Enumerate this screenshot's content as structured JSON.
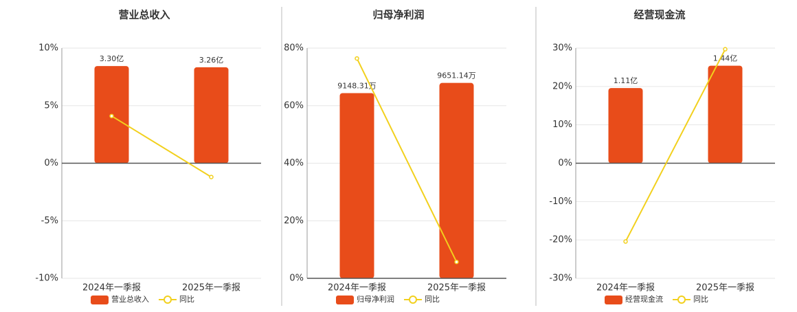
{
  "chart_data": [
    {
      "type": "bar",
      "title": "营业总收入",
      "categories": [
        "2024年一季报",
        "2025年一季报"
      ],
      "series": [
        {
          "name": "营业总收入",
          "type": "bar",
          "color": "#e84c1a",
          "axis": "y2",
          "values": [
            3.3,
            3.26
          ],
          "value_labels": [
            "3.30亿",
            "3.26亿"
          ]
        },
        {
          "name": "同比",
          "type": "line",
          "color": "#f2d01d",
          "values": [
            4.1,
            -1.2
          ]
        }
      ],
      "ylim": [
        -10,
        10
      ],
      "yticks": [
        {
          "value": -10,
          "label": "-10%"
        },
        {
          "value": -5,
          "label": "-5%"
        },
        {
          "value": 0,
          "label": "0%"
        },
        {
          "value": 5,
          "label": "5%"
        },
        {
          "value": 10,
          "label": "10%"
        }
      ],
      "y2lim": [
        -3.91,
        3.91
      ],
      "grid": true,
      "legend": "bottom"
    },
    {
      "type": "bar",
      "title": "归母净利润",
      "categories": [
        "2024年一季报",
        "2025年一季报"
      ],
      "series": [
        {
          "name": "归母净利润",
          "type": "bar",
          "color": "#e84c1a",
          "axis": "y2",
          "values": [
            9148.31,
            9651.14
          ],
          "value_labels": [
            "9148.31万",
            "9651.14万"
          ]
        },
        {
          "name": "同比",
          "type": "line",
          "color": "#f2d01d",
          "values": [
            76.4,
            5.7
          ]
        }
      ],
      "ylim": [
        0,
        80
      ],
      "yticks": [
        {
          "value": 0,
          "label": "0%"
        },
        {
          "value": 20,
          "label": "20%"
        },
        {
          "value": 40,
          "label": "40%"
        },
        {
          "value": 60,
          "label": "60%"
        },
        {
          "value": 80,
          "label": "80%"
        }
      ],
      "y2lim": [
        0,
        11370
      ],
      "grid": true,
      "legend": "bottom"
    },
    {
      "type": "bar",
      "title": "经营现金流",
      "categories": [
        "2024年一季报",
        "2025年一季报"
      ],
      "series": [
        {
          "name": "经营现金流",
          "type": "bar",
          "color": "#e84c1a",
          "axis": "y2",
          "values": [
            1.11,
            1.44
          ],
          "value_labels": [
            "1.11亿",
            "1.44亿"
          ]
        },
        {
          "name": "同比",
          "type": "line",
          "color": "#f2d01d",
          "values": [
            -20.4,
            29.7
          ]
        }
      ],
      "ylim": [
        -30,
        30
      ],
      "yticks": [
        {
          "value": -30,
          "label": "-30%"
        },
        {
          "value": -20,
          "label": "-20%"
        },
        {
          "value": -10,
          "label": "-10%"
        },
        {
          "value": 0,
          "label": "0%"
        },
        {
          "value": 10,
          "label": "10%"
        },
        {
          "value": 20,
          "label": "20%"
        },
        {
          "value": 30,
          "label": "30%"
        }
      ],
      "y2lim": [
        -1.7,
        1.7
      ],
      "grid": true,
      "legend": "bottom"
    }
  ]
}
